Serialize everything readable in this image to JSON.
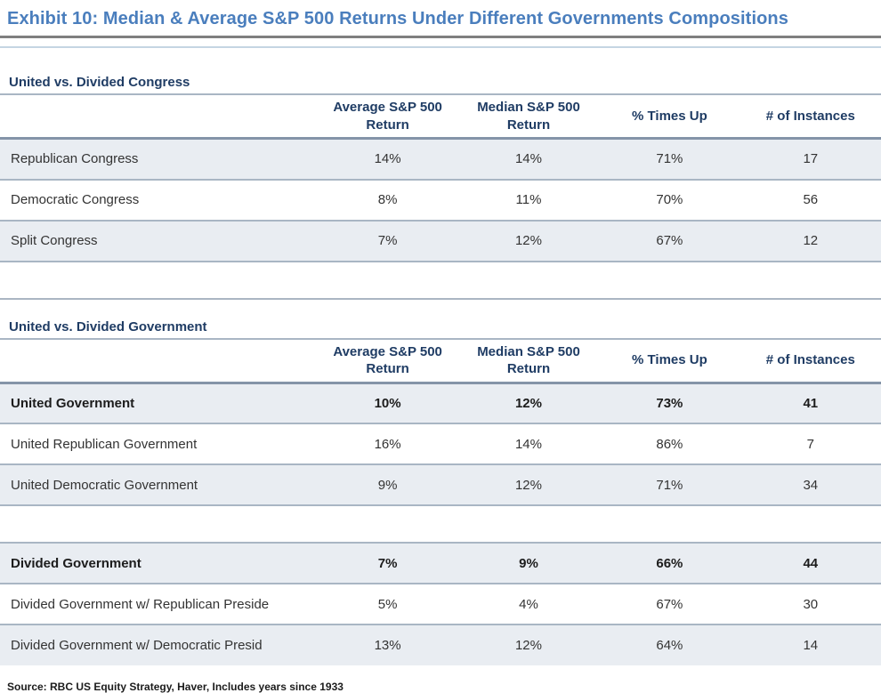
{
  "title": "Exhibit 10: Median & Average S&P 500 Returns Under Different Governments Compositions",
  "columns": [
    "Average S&P 500 Return",
    "Median S&P 500 Return",
    "% Times Up",
    "# of Instances"
  ],
  "tables": [
    {
      "title": "United vs. Divided Congress",
      "rows": [
        {
          "label": "Republican Congress",
          "values": [
            "14%",
            "14%",
            "71%",
            "17"
          ]
        },
        {
          "label": "Democratic Congress",
          "values": [
            "8%",
            "11%",
            "70%",
            "56"
          ]
        },
        {
          "label": "Split Congress",
          "values": [
            "7%",
            "12%",
            "67%",
            "12"
          ]
        }
      ]
    },
    {
      "title": "United vs. Divided Government",
      "rows": [
        {
          "label": "United Government",
          "values": [
            "10%",
            "12%",
            "73%",
            "41"
          ]
        },
        {
          "label": "United Republican Government",
          "values": [
            "16%",
            "14%",
            "86%",
            "7"
          ]
        },
        {
          "label": "United Democratic Government",
          "values": [
            "9%",
            "12%",
            "71%",
            "34"
          ]
        },
        {
          "label": "Divided Government",
          "values": [
            "7%",
            "9%",
            "66%",
            "44"
          ]
        },
        {
          "label": "Divided Government w/ Republican Preside",
          "values": [
            "5%",
            "4%",
            "67%",
            "30"
          ]
        },
        {
          "label": "Divided Government w/ Democratic Presid",
          "values": [
            "13%",
            "12%",
            "64%",
            "14"
          ]
        }
      ]
    }
  ],
  "source": "Source: RBC US Equity Strategy, Haver, Includes years since 1933",
  "colors": {
    "title_blue": "#4a7ebd",
    "header_navy": "#1f3c64",
    "row_shade": "#e9edf2",
    "row_separator": "#a9b6c4",
    "title_rule_dark": "#7f7f7f",
    "title_rule_light": "#c5d5e3"
  }
}
